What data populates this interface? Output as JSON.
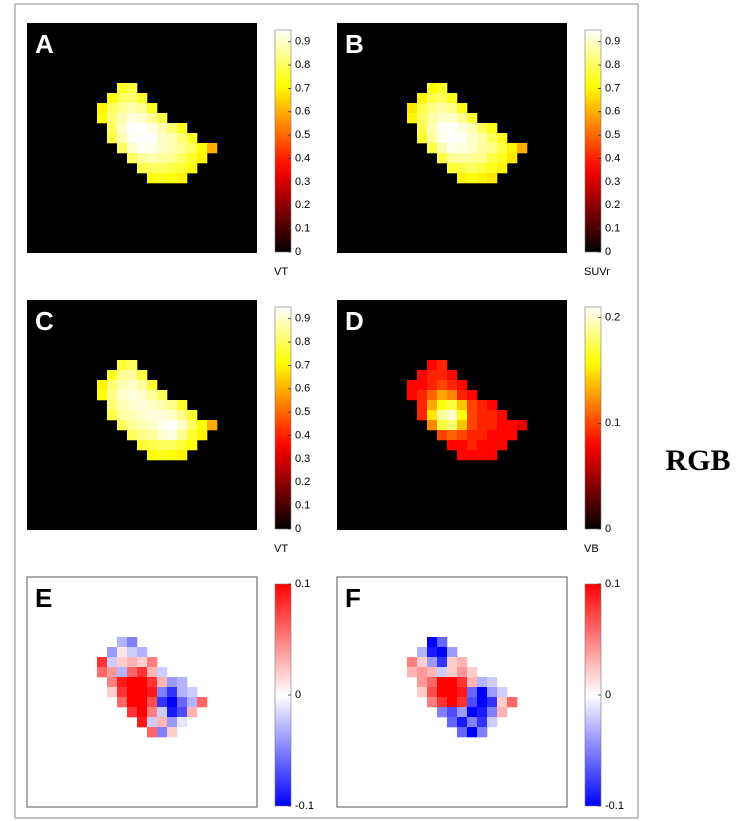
{
  "annotation": "RGB",
  "chart_data": [
    {
      "type": "heatmap",
      "panel_label": "A",
      "colorbar_label": "VT",
      "colormap": "hot",
      "clim": [
        0,
        0.95
      ],
      "cticks": [
        0,
        0.1,
        0.2,
        0.3,
        0.4,
        0.5,
        0.6,
        0.7,
        0.8,
        0.9
      ],
      "xlim": [
        0,
        23
      ],
      "ylim": [
        0,
        23
      ],
      "x": [
        7,
        8,
        9,
        10,
        11,
        12,
        13,
        14,
        15,
        16,
        17,
        18
      ],
      "y": [
        6,
        7,
        8,
        9,
        10,
        11,
        12,
        13,
        14,
        15
      ],
      "z": [
        [
          null,
          null,
          0.75,
          0.78,
          null,
          null,
          null,
          null,
          null,
          null,
          null,
          null
        ],
        [
          null,
          0.72,
          0.8,
          0.82,
          0.76,
          null,
          null,
          null,
          null,
          null,
          null,
          null
        ],
        [
          0.7,
          0.8,
          0.85,
          0.88,
          0.85,
          0.75,
          null,
          null,
          null,
          null,
          null,
          null
        ],
        [
          0.72,
          0.82,
          0.88,
          0.92,
          0.9,
          0.85,
          0.78,
          null,
          null,
          null,
          null,
          null
        ],
        [
          null,
          0.8,
          0.9,
          0.95,
          0.95,
          0.92,
          0.88,
          0.82,
          0.75,
          null,
          null,
          null
        ],
        [
          null,
          0.78,
          0.88,
          0.94,
          0.95,
          0.95,
          0.9,
          0.88,
          0.82,
          0.75,
          null,
          null
        ],
        [
          null,
          null,
          0.8,
          0.9,
          0.94,
          0.93,
          0.9,
          0.88,
          0.85,
          0.8,
          0.72,
          0.6
        ],
        [
          null,
          null,
          null,
          0.8,
          0.86,
          0.88,
          0.86,
          0.85,
          0.8,
          0.75,
          0.7,
          null
        ],
        [
          null,
          null,
          null,
          null,
          0.78,
          0.8,
          0.8,
          0.78,
          0.76,
          0.72,
          null,
          null
        ],
        [
          null,
          null,
          null,
          null,
          null,
          0.72,
          0.74,
          0.72,
          0.7,
          null,
          null,
          null
        ]
      ]
    },
    {
      "type": "heatmap",
      "panel_label": "B",
      "colorbar_label": "SUVr",
      "colormap": "hot",
      "clim": [
        0,
        0.95
      ],
      "cticks": [
        0,
        0.1,
        0.2,
        0.3,
        0.4,
        0.5,
        0.6,
        0.7,
        0.8,
        0.9
      ],
      "xlim": [
        0,
        23
      ],
      "ylim": [
        0,
        23
      ],
      "x": [
        7,
        8,
        9,
        10,
        11,
        12,
        13,
        14,
        15,
        16,
        17,
        18
      ],
      "y": [
        6,
        7,
        8,
        9,
        10,
        11,
        12,
        13,
        14,
        15
      ],
      "z": [
        [
          null,
          null,
          0.72,
          0.75,
          null,
          null,
          null,
          null,
          null,
          null,
          null,
          null
        ],
        [
          null,
          0.7,
          0.78,
          0.8,
          0.74,
          null,
          null,
          null,
          null,
          null,
          null,
          null
        ],
        [
          0.68,
          0.78,
          0.84,
          0.87,
          0.84,
          0.74,
          null,
          null,
          null,
          null,
          null,
          null
        ],
        [
          0.7,
          0.8,
          0.87,
          0.9,
          0.9,
          0.85,
          0.76,
          null,
          null,
          null,
          null,
          null
        ],
        [
          null,
          0.78,
          0.88,
          0.94,
          0.95,
          0.92,
          0.88,
          0.8,
          0.74,
          null,
          null,
          null
        ],
        [
          null,
          0.76,
          0.86,
          0.93,
          0.95,
          0.94,
          0.9,
          0.87,
          0.8,
          0.74,
          null,
          null
        ],
        [
          null,
          null,
          0.78,
          0.88,
          0.93,
          0.92,
          0.9,
          0.86,
          0.84,
          0.78,
          0.7,
          0.6
        ],
        [
          null,
          null,
          null,
          0.78,
          0.85,
          0.86,
          0.85,
          0.84,
          0.78,
          0.74,
          0.68,
          null
        ],
        [
          null,
          null,
          null,
          null,
          0.76,
          0.78,
          0.8,
          0.77,
          0.74,
          0.7,
          null,
          null
        ],
        [
          null,
          null,
          null,
          null,
          null,
          0.7,
          0.72,
          0.7,
          0.68,
          null,
          null,
          null
        ]
      ]
    },
    {
      "type": "heatmap",
      "panel_label": "C",
      "colorbar_label": "VT",
      "colormap": "hot",
      "clim": [
        0,
        0.95
      ],
      "cticks": [
        0,
        0.1,
        0.2,
        0.3,
        0.4,
        0.5,
        0.6,
        0.7,
        0.8,
        0.9
      ],
      "xlim": [
        0,
        23
      ],
      "ylim": [
        0,
        23
      ],
      "x": [
        7,
        8,
        9,
        10,
        11,
        12,
        13,
        14,
        15,
        16,
        17,
        18
      ],
      "y": [
        6,
        7,
        8,
        9,
        10,
        11,
        12,
        13,
        14,
        15
      ],
      "z": [
        [
          null,
          null,
          0.76,
          0.8,
          null,
          null,
          null,
          null,
          null,
          null,
          null,
          null
        ],
        [
          null,
          0.74,
          0.85,
          0.86,
          0.78,
          null,
          null,
          null,
          null,
          null,
          null,
          null
        ],
        [
          0.7,
          0.82,
          0.88,
          0.9,
          0.86,
          0.76,
          null,
          null,
          null,
          null,
          null,
          null
        ],
        [
          0.72,
          0.84,
          0.9,
          0.92,
          0.9,
          0.86,
          0.8,
          null,
          null,
          null,
          null,
          null
        ],
        [
          null,
          0.82,
          0.88,
          0.9,
          0.92,
          0.9,
          0.88,
          0.84,
          0.76,
          null,
          null,
          null
        ],
        [
          null,
          0.78,
          0.86,
          0.88,
          0.9,
          0.92,
          0.92,
          0.9,
          0.84,
          0.76,
          null,
          null
        ],
        [
          null,
          null,
          0.8,
          0.85,
          0.88,
          0.9,
          0.93,
          0.95,
          0.9,
          0.8,
          0.72,
          0.6
        ],
        [
          null,
          null,
          null,
          0.8,
          0.84,
          0.86,
          0.9,
          0.92,
          0.85,
          0.76,
          0.7,
          null
        ],
        [
          null,
          null,
          null,
          null,
          0.76,
          0.78,
          0.8,
          0.8,
          0.76,
          0.72,
          null,
          null
        ],
        [
          null,
          null,
          null,
          null,
          null,
          0.72,
          0.74,
          0.72,
          0.7,
          null,
          null,
          null
        ]
      ]
    },
    {
      "type": "heatmap",
      "panel_label": "D",
      "colorbar_label": "VB",
      "colormap": "hot",
      "clim": [
        0,
        0.21
      ],
      "cticks": [
        0,
        0.1,
        0.2
      ],
      "xlim": [
        0,
        23
      ],
      "ylim": [
        0,
        23
      ],
      "x": [
        7,
        8,
        9,
        10,
        11,
        12,
        13,
        14,
        15,
        16,
        17,
        18
      ],
      "y": [
        6,
        7,
        8,
        9,
        10,
        11,
        12,
        13,
        14,
        15
      ],
      "z": [
        [
          null,
          null,
          0.08,
          0.09,
          null,
          null,
          null,
          null,
          null,
          null,
          null,
          null
        ],
        [
          null,
          0.08,
          0.09,
          0.09,
          0.08,
          null,
          null,
          null,
          null,
          null,
          null,
          null
        ],
        [
          0.08,
          0.08,
          0.09,
          0.1,
          0.09,
          0.08,
          null,
          null,
          null,
          null,
          null,
          null
        ],
        [
          0.08,
          0.09,
          0.11,
          0.13,
          0.12,
          0.09,
          0.08,
          null,
          null,
          null,
          null,
          null
        ],
        [
          null,
          0.09,
          0.13,
          0.16,
          0.17,
          0.14,
          0.1,
          0.09,
          0.08,
          null,
          null,
          null
        ],
        [
          null,
          0.09,
          0.15,
          0.19,
          0.2,
          0.16,
          0.1,
          0.09,
          0.09,
          0.08,
          null,
          null
        ],
        [
          null,
          null,
          0.12,
          0.17,
          0.18,
          0.14,
          0.1,
          0.09,
          0.09,
          0.08,
          0.08,
          0.07
        ],
        [
          null,
          null,
          null,
          0.1,
          0.11,
          0.1,
          0.09,
          0.09,
          0.08,
          0.08,
          0.08,
          null
        ],
        [
          null,
          null,
          null,
          null,
          0.08,
          0.08,
          0.09,
          0.08,
          0.08,
          0.08,
          null,
          null
        ],
        [
          null,
          null,
          null,
          null,
          null,
          0.08,
          0.08,
          0.08,
          0.08,
          null,
          null,
          null
        ]
      ]
    },
    {
      "type": "heatmap",
      "panel_label": "E",
      "colormap": "diverging",
      "clim": [
        -0.1,
        0.1
      ],
      "cticks": [
        -0.1,
        0,
        0.1
      ],
      "xlim": [
        0,
        23
      ],
      "ylim": [
        0,
        23
      ],
      "x": [
        7,
        8,
        9,
        10,
        11,
        12,
        13,
        14,
        15,
        16,
        17,
        18
      ],
      "y": [
        6,
        7,
        8,
        9,
        10,
        11,
        12,
        13,
        14,
        15
      ],
      "z": [
        [
          null,
          null,
          -0.03,
          -0.05,
          null,
          null,
          null,
          null,
          null,
          null,
          null,
          null
        ],
        [
          null,
          -0.04,
          0.01,
          -0.02,
          -0.03,
          null,
          null,
          null,
          null,
          null,
          null,
          null
        ],
        [
          0.08,
          -0.02,
          0.02,
          0.03,
          0.02,
          0.05,
          null,
          null,
          null,
          null,
          null,
          null
        ],
        [
          0.06,
          0.04,
          -0.03,
          0.06,
          0.08,
          0.03,
          -0.02,
          null,
          null,
          null,
          null,
          null
        ],
        [
          null,
          0.05,
          0.09,
          0.1,
          0.1,
          0.08,
          0.03,
          -0.04,
          -0.03,
          null,
          null,
          null
        ],
        [
          null,
          0.02,
          0.08,
          0.1,
          0.1,
          0.09,
          -0.05,
          -0.08,
          -0.03,
          -0.02,
          null,
          null
        ],
        [
          null,
          null,
          0.06,
          0.1,
          0.1,
          0.07,
          -0.08,
          -0.1,
          -0.06,
          -0.03,
          0.06,
          null
        ],
        [
          null,
          null,
          null,
          0.08,
          0.1,
          0.05,
          -0.02,
          -0.09,
          -0.07,
          0.03,
          null,
          null
        ],
        [
          null,
          null,
          null,
          null,
          0.09,
          -0.02,
          0.03,
          -0.04,
          -0.01,
          null,
          null,
          null
        ],
        [
          null,
          null,
          null,
          null,
          null,
          0.06,
          -0.05,
          0.02,
          null,
          null,
          null,
          null
        ]
      ]
    },
    {
      "type": "heatmap",
      "panel_label": "F",
      "colormap": "diverging",
      "clim": [
        -0.1,
        0.1
      ],
      "cticks": [
        -0.1,
        0,
        0.1
      ],
      "xlim": [
        0,
        23
      ],
      "ylim": [
        0,
        23
      ],
      "x": [
        7,
        8,
        9,
        10,
        11,
        12,
        13,
        14,
        15,
        16,
        17,
        18
      ],
      "y": [
        6,
        7,
        8,
        9,
        10,
        11,
        12,
        13,
        14,
        15
      ],
      "z": [
        [
          null,
          null,
          -0.1,
          -0.06,
          null,
          null,
          null,
          null,
          null,
          null,
          null,
          null
        ],
        [
          null,
          -0.03,
          -0.09,
          -0.1,
          -0.04,
          null,
          null,
          null,
          null,
          null,
          null,
          null
        ],
        [
          0.05,
          0.02,
          -0.04,
          -0.08,
          0.02,
          0.03,
          null,
          null,
          null,
          null,
          null,
          null
        ],
        [
          0.03,
          0.04,
          0.03,
          -0.02,
          0.02,
          0.04,
          0.02,
          null,
          null,
          null,
          null,
          null
        ],
        [
          null,
          0.04,
          0.06,
          0.1,
          0.1,
          0.08,
          0.03,
          -0.03,
          -0.02,
          null,
          null,
          null
        ],
        [
          null,
          0.02,
          0.07,
          0.1,
          0.1,
          0.09,
          -0.06,
          -0.1,
          -0.04,
          -0.02,
          null,
          null
        ],
        [
          null,
          null,
          0.05,
          0.08,
          0.1,
          0.08,
          -0.07,
          -0.1,
          -0.08,
          0.02,
          0.06,
          null
        ],
        [
          null,
          null,
          null,
          -0.05,
          -0.07,
          -0.04,
          -0.1,
          -0.09,
          -0.05,
          0.03,
          null,
          null
        ],
        [
          null,
          null,
          null,
          null,
          -0.06,
          -0.09,
          -0.05,
          -0.08,
          -0.02,
          null,
          null,
          null
        ],
        [
          null,
          null,
          null,
          null,
          null,
          -0.06,
          -0.1,
          -0.05,
          null,
          null,
          null,
          null
        ]
      ]
    }
  ]
}
